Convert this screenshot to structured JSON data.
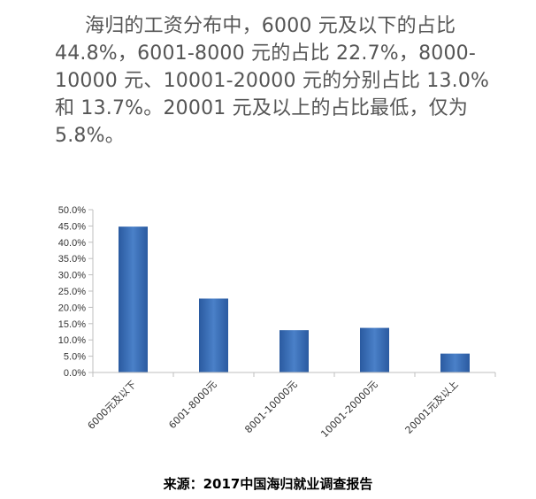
{
  "paragraph": {
    "lines": [
      "海归的工资分布中，6000 元及以下的占比",
      "44.8%，6001-8000 元的占比 22.7%，8000-",
      "10000 元、10001-20000 元的分别占比 13.0%",
      "和 13.7%。20001 元及以上的占比最低，仅为",
      "5.8%。"
    ]
  },
  "chart_data": {
    "type": "bar",
    "categories": [
      "6000元及以下",
      "6001-8000元",
      "8001-10000元",
      "10001-20000元",
      "20001元及以上"
    ],
    "values": [
      44.8,
      22.7,
      13.0,
      13.7,
      5.8
    ],
    "yticks": [
      "0.0%",
      "5.0%",
      "10.0%",
      "15.0%",
      "20.0%",
      "25.0%",
      "30.0%",
      "35.0%",
      "40.0%",
      "45.0%",
      "50.0%"
    ],
    "ylim": [
      0,
      50
    ],
    "title": "",
    "xlabel": "",
    "ylabel": "",
    "bar_color": "#3a6fb8",
    "grid": false,
    "legend": "none"
  },
  "source_text": "来源：2017中国海归就业调查报告"
}
